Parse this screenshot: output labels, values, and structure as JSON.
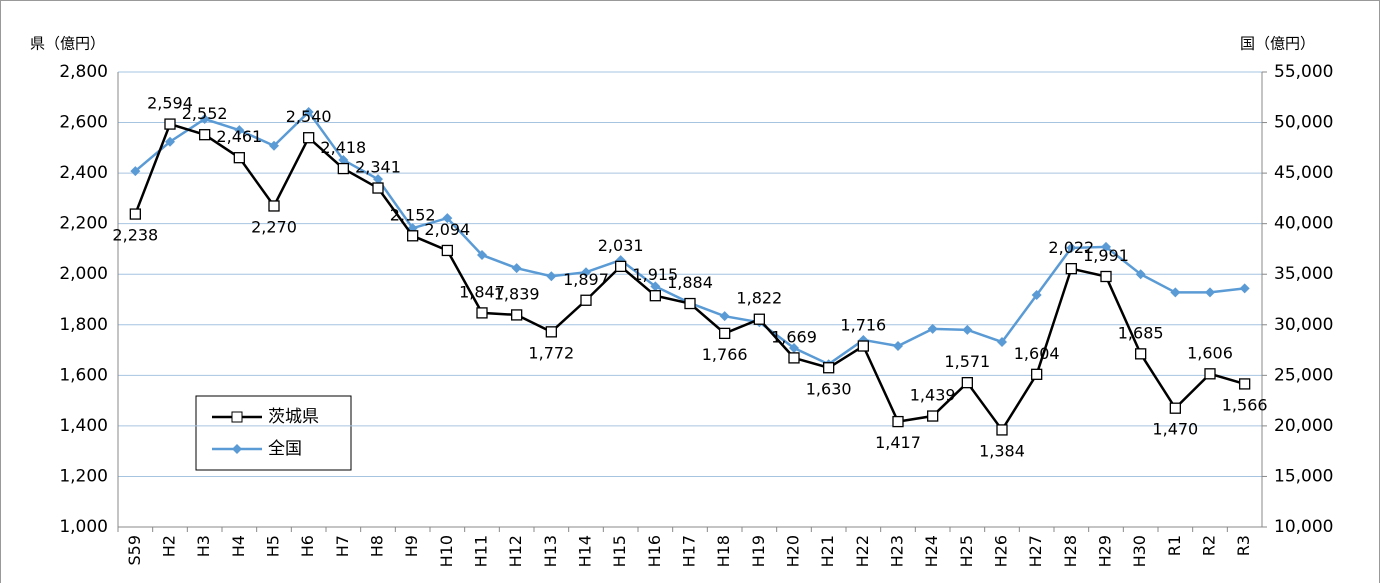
{
  "chart_data": {
    "type": "line",
    "y_label": "県（億円）",
    "y2_label": "国（億円）",
    "categories": [
      "S59",
      "H2",
      "H3",
      "H4",
      "H5",
      "H6",
      "H7",
      "H8",
      "H9",
      "H10",
      "H11",
      "H12",
      "H13",
      "H14",
      "H15",
      "H16",
      "H17",
      "H18",
      "H19",
      "H20",
      "H21",
      "H22",
      "H23",
      "H24",
      "H25",
      "H26",
      "H27",
      "H28",
      "H29",
      "H30",
      "R1",
      "R2",
      "R3"
    ],
    "series": [
      {
        "name": "全国",
        "color": "#5b9bd5",
        "axis": "y2",
        "values": [
          45200,
          48100,
          50350,
          49250,
          47700,
          51050,
          46300,
          44400,
          39550,
          40550,
          36900,
          35600,
          34800,
          35200,
          36400,
          33800,
          32150,
          30850,
          30250,
          27700,
          26100,
          28500,
          27900,
          29600,
          29500,
          28300,
          32950,
          37600,
          37700,
          35000,
          33200,
          33200,
          33600
        ]
      },
      {
        "name": "茨城県",
        "color": "#000000",
        "values": [
          2238,
          2594,
          2552,
          2461,
          2270,
          2540,
          2418,
          2341,
          2152,
          2094,
          1847,
          1839,
          1772,
          1897,
          2031,
          1915,
          1884,
          1766,
          1822,
          1669,
          1630,
          1716,
          1417,
          1439,
          1571,
          1384,
          1604,
          2022,
          1991,
          1685,
          1470,
          1606,
          1566
        ],
        "value_labels": [
          "2,238",
          "2,594",
          "2,552",
          "2,461",
          "2,270",
          "2,540",
          "2,418",
          "2,341",
          "2,152",
          "2,094",
          "1,847",
          "1,839",
          "1,772",
          "1,897",
          "2,031",
          "1,915",
          "1,884",
          "1,766",
          "1,822",
          "1,669",
          "1,630",
          "1,716",
          "1,417",
          "1,439",
          "1,571",
          "1,384",
          "1,604",
          "2,022",
          "1,991",
          "1,685",
          "1,470",
          "1,606",
          "1,566"
        ]
      }
    ],
    "ylim": [
      1000,
      2800
    ],
    "yticks": [
      {
        "value": 1000,
        "label": "1,000"
      },
      {
        "value": 1200,
        "label": "1,200"
      },
      {
        "value": 1400,
        "label": "1,400"
      },
      {
        "value": 1600,
        "label": "1,600"
      },
      {
        "value": 1800,
        "label": "1,800"
      },
      {
        "value": 2000,
        "label": "2,000"
      },
      {
        "value": 2200,
        "label": "2,200"
      },
      {
        "value": 2400,
        "label": "2,400"
      },
      {
        "value": 2600,
        "label": "2,600"
      },
      {
        "value": 2800,
        "label": "2,800"
      }
    ],
    "y2lim": [
      10000,
      55000
    ],
    "y2ticks": [
      {
        "value": 10000,
        "label": "10,000"
      },
      {
        "value": 15000,
        "label": "15,000"
      },
      {
        "value": 20000,
        "label": "20,000"
      },
      {
        "value": 25000,
        "label": "25,000"
      },
      {
        "value": 30000,
        "label": "30,000"
      },
      {
        "value": 35000,
        "label": "35,000"
      },
      {
        "value": 40000,
        "label": "40,000"
      },
      {
        "value": 45000,
        "label": "45,000"
      },
      {
        "value": 50000,
        "label": "50,000"
      },
      {
        "value": 55000,
        "label": "55,000"
      }
    ],
    "grid": true
  }
}
